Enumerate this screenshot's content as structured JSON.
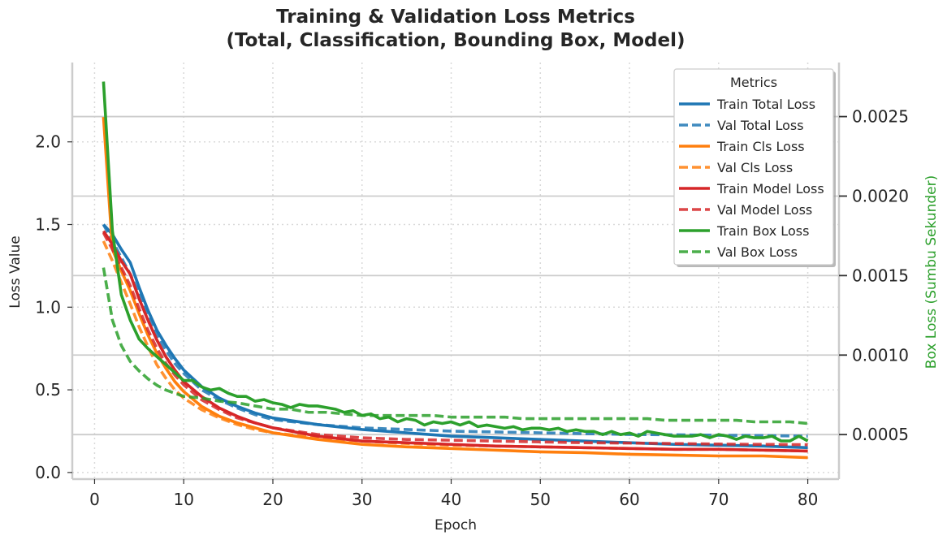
{
  "chart_data": {
    "type": "line",
    "title": "Training & Validation Loss Metrics",
    "subtitle": "(Total, Classification, Bounding Box, Model)",
    "xlabel": "Epoch",
    "ylabel": "Loss Value",
    "y2label": "Box Loss (Sumbu Sekunder)",
    "xlim": [
      -2.5,
      83.5
    ],
    "ylim": [
      -0.04,
      2.48
    ],
    "y2lim": [
      0.00022,
      0.00284
    ],
    "xticks": [
      0,
      10,
      20,
      30,
      40,
      50,
      60,
      70,
      80
    ],
    "yticks": [
      0.0,
      0.5,
      1.0,
      1.5,
      2.0
    ],
    "y2ticks": [
      0.0005,
      0.001,
      0.0015,
      0.002,
      0.0025
    ],
    "xtick_labels": [
      "0",
      "10",
      "20",
      "30",
      "40",
      "50",
      "60",
      "70",
      "80"
    ],
    "ytick_labels": [
      "0.0",
      "0.5",
      "1.0",
      "1.5",
      "2.0"
    ],
    "y2tick_labels": [
      "0.0005",
      "0.0010",
      "0.0015",
      "0.0020",
      "0.0025"
    ],
    "grid": true,
    "legend": {
      "title": "Metrics",
      "placement": "top-right"
    },
    "colors": {
      "total": "#1f77b4",
      "cls": "#ff7f0e",
      "model": "#d62728",
      "box": "#2ca02c",
      "ylabel2": "#2ca02c"
    },
    "series": [
      {
        "name": "Train Total Loss",
        "axis": "left",
        "style": "solid",
        "color": "#1f77b4",
        "x": [
          1,
          2,
          3,
          4,
          5,
          6,
          7,
          8,
          9,
          10,
          12,
          14,
          16,
          18,
          20,
          25,
          30,
          35,
          40,
          45,
          50,
          55,
          60,
          65,
          70,
          75,
          80
        ],
        "values": [
          1.5,
          1.44,
          1.35,
          1.27,
          1.12,
          0.98,
          0.86,
          0.77,
          0.69,
          0.62,
          0.52,
          0.45,
          0.4,
          0.36,
          0.33,
          0.29,
          0.26,
          0.24,
          0.22,
          0.21,
          0.2,
          0.19,
          0.18,
          0.17,
          0.165,
          0.16,
          0.15
        ]
      },
      {
        "name": "Val Total Loss",
        "axis": "left",
        "style": "dashed",
        "color": "#1f77b4",
        "x": [
          1,
          2,
          3,
          4,
          5,
          6,
          7,
          8,
          9,
          10,
          12,
          14,
          16,
          18,
          20,
          25,
          30,
          35,
          40,
          45,
          50,
          55,
          60,
          65,
          70,
          75,
          80
        ],
        "values": [
          1.5,
          1.4,
          1.3,
          1.2,
          1.08,
          0.95,
          0.83,
          0.74,
          0.66,
          0.6,
          0.5,
          0.44,
          0.39,
          0.35,
          0.32,
          0.29,
          0.27,
          0.26,
          0.25,
          0.245,
          0.24,
          0.235,
          0.23,
          0.228,
          0.225,
          0.223,
          0.22
        ]
      },
      {
        "name": "Train Cls Loss",
        "axis": "left",
        "style": "solid",
        "color": "#ff7f0e",
        "x": [
          1,
          2,
          3,
          4,
          5,
          6,
          7,
          8,
          9,
          10,
          12,
          14,
          16,
          18,
          20,
          25,
          30,
          35,
          40,
          45,
          50,
          55,
          60,
          65,
          70,
          75,
          80
        ],
        "values": [
          2.15,
          1.35,
          1.22,
          1.1,
          0.96,
          0.83,
          0.72,
          0.63,
          0.55,
          0.49,
          0.4,
          0.34,
          0.3,
          0.27,
          0.24,
          0.2,
          0.17,
          0.155,
          0.145,
          0.135,
          0.125,
          0.12,
          0.11,
          0.105,
          0.1,
          0.1,
          0.09
        ]
      },
      {
        "name": "Val Cls Loss",
        "axis": "left",
        "style": "dashed",
        "color": "#ff7f0e",
        "x": [
          1,
          2,
          3,
          4,
          5,
          6,
          7,
          8,
          9,
          10,
          12,
          14,
          16,
          18,
          20,
          25,
          30,
          35,
          40,
          45,
          50,
          55,
          60,
          65,
          70,
          75,
          80
        ],
        "values": [
          1.4,
          1.28,
          1.15,
          1.02,
          0.88,
          0.76,
          0.65,
          0.57,
          0.5,
          0.45,
          0.38,
          0.33,
          0.29,
          0.26,
          0.24,
          0.21,
          0.19,
          0.175,
          0.165,
          0.16,
          0.155,
          0.15,
          0.145,
          0.14,
          0.14,
          0.135,
          0.13
        ]
      },
      {
        "name": "Train Model Loss",
        "axis": "left",
        "style": "solid",
        "color": "#d62728",
        "x": [
          1,
          2,
          3,
          4,
          5,
          6,
          7,
          8,
          9,
          10,
          12,
          14,
          16,
          18,
          20,
          25,
          30,
          35,
          40,
          45,
          50,
          55,
          60,
          65,
          70,
          75,
          80
        ],
        "values": [
          1.46,
          1.38,
          1.28,
          1.2,
          1.05,
          0.92,
          0.8,
          0.7,
          0.62,
          0.55,
          0.46,
          0.39,
          0.34,
          0.3,
          0.27,
          0.22,
          0.19,
          0.18,
          0.17,
          0.16,
          0.155,
          0.15,
          0.145,
          0.14,
          0.14,
          0.135,
          0.13
        ]
      },
      {
        "name": "Val Model Loss",
        "axis": "left",
        "style": "dashed",
        "color": "#d62728",
        "x": [
          1,
          2,
          3,
          4,
          5,
          6,
          7,
          8,
          9,
          10,
          12,
          14,
          16,
          18,
          20,
          25,
          30,
          35,
          40,
          45,
          50,
          55,
          60,
          65,
          70,
          75,
          80
        ],
        "values": [
          1.45,
          1.35,
          1.24,
          1.13,
          0.99,
          0.86,
          0.75,
          0.66,
          0.59,
          0.53,
          0.44,
          0.38,
          0.33,
          0.3,
          0.27,
          0.23,
          0.21,
          0.2,
          0.195,
          0.19,
          0.185,
          0.18,
          0.178,
          0.175,
          0.172,
          0.17,
          0.168
        ]
      },
      {
        "name": "Train Box Loss",
        "axis": "right",
        "style": "solid",
        "color": "#2ca02c",
        "x": [
          1,
          2,
          3,
          4,
          5,
          6,
          7,
          8,
          9,
          10,
          11,
          12,
          13,
          14,
          15,
          16,
          17,
          18,
          19,
          20,
          21,
          22,
          23,
          24,
          25,
          26,
          27,
          28,
          29,
          30,
          31,
          32,
          33,
          34,
          35,
          36,
          37,
          38,
          39,
          40,
          41,
          42,
          43,
          44,
          45,
          46,
          47,
          48,
          49,
          50,
          51,
          52,
          53,
          54,
          55,
          56,
          57,
          58,
          59,
          60,
          61,
          62,
          63,
          64,
          65,
          66,
          67,
          68,
          69,
          70,
          71,
          72,
          73,
          74,
          75,
          76,
          77,
          78,
          79,
          80
        ],
        "values": [
          0.00272,
          0.00178,
          0.00138,
          0.00122,
          0.0011,
          0.00104,
          0.00099,
          0.00094,
          0.00089,
          0.00084,
          0.00084,
          0.0008,
          0.00078,
          0.00079,
          0.00076,
          0.00074,
          0.00074,
          0.00071,
          0.00072,
          0.0007,
          0.00069,
          0.00067,
          0.00069,
          0.00068,
          0.00068,
          0.00067,
          0.00066,
          0.00064,
          0.00065,
          0.00062,
          0.00063,
          0.0006,
          0.00061,
          0.00058,
          0.0006,
          0.00059,
          0.00056,
          0.00058,
          0.00057,
          0.00058,
          0.00056,
          0.00058,
          0.00055,
          0.00056,
          0.00055,
          0.00054,
          0.00055,
          0.00053,
          0.00054,
          0.00054,
          0.00053,
          0.00054,
          0.00052,
          0.00053,
          0.00052,
          0.00052,
          0.0005,
          0.00052,
          0.0005,
          0.00051,
          0.00049,
          0.00052,
          0.00051,
          0.0005,
          0.00049,
          0.00049,
          0.00049,
          0.0005,
          0.00048,
          0.0005,
          0.00049,
          0.00047,
          0.00049,
          0.00048,
          0.00048,
          0.00049,
          0.00046,
          0.00046,
          0.00049,
          0.00046
        ]
      },
      {
        "name": "Val Box Loss",
        "axis": "right",
        "style": "dashed",
        "color": "#2ca02c",
        "x": [
          1,
          2,
          3,
          4,
          5,
          6,
          7,
          8,
          9,
          10,
          12,
          14,
          16,
          18,
          20,
          22,
          24,
          26,
          28,
          30,
          32,
          34,
          36,
          38,
          40,
          42,
          44,
          46,
          48,
          50,
          52,
          54,
          56,
          58,
          60,
          62,
          64,
          66,
          68,
          70,
          72,
          74,
          76,
          78,
          80
        ],
        "values": [
          0.00155,
          0.00122,
          0.00106,
          0.00096,
          0.0009,
          0.00085,
          0.00081,
          0.00078,
          0.00076,
          0.00074,
          0.00073,
          0.00071,
          0.0007,
          0.00068,
          0.00066,
          0.00066,
          0.00064,
          0.00064,
          0.00063,
          0.00062,
          0.00062,
          0.00062,
          0.00062,
          0.00062,
          0.00061,
          0.00061,
          0.00061,
          0.00061,
          0.0006,
          0.0006,
          0.0006,
          0.0006,
          0.0006,
          0.0006,
          0.0006,
          0.0006,
          0.00059,
          0.00059,
          0.00059,
          0.00059,
          0.00059,
          0.00058,
          0.00058,
          0.00058,
          0.00057
        ]
      }
    ]
  }
}
